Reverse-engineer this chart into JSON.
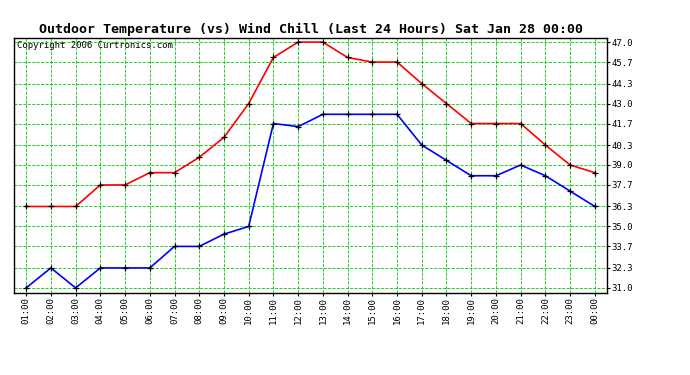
{
  "title": "Outdoor Temperature (vs) Wind Chill (Last 24 Hours) Sat Jan 28 00:00",
  "copyright": "Copyright 2006 Curtronics.com",
  "x_labels": [
    "01:00",
    "02:00",
    "03:00",
    "04:00",
    "05:00",
    "06:00",
    "07:00",
    "08:00",
    "09:00",
    "10:00",
    "11:00",
    "12:00",
    "13:00",
    "14:00",
    "15:00",
    "16:00",
    "17:00",
    "18:00",
    "19:00",
    "20:00",
    "21:00",
    "22:00",
    "23:00",
    "00:00"
  ],
  "temp_red": [
    36.3,
    36.3,
    36.3,
    37.7,
    37.7,
    38.5,
    38.5,
    39.5,
    40.8,
    43.0,
    46.0,
    47.0,
    47.0,
    46.0,
    45.7,
    45.7,
    44.3,
    43.0,
    41.7,
    41.7,
    41.7,
    40.3,
    39.0,
    38.5
  ],
  "temp_blue": [
    31.0,
    32.3,
    31.0,
    32.3,
    32.3,
    32.3,
    33.7,
    33.7,
    34.5,
    35.0,
    41.7,
    41.5,
    42.3,
    42.3,
    42.3,
    42.3,
    40.3,
    39.3,
    38.3,
    38.3,
    39.0,
    38.3,
    37.3,
    36.3
  ],
  "ylim_min": 31.0,
  "ylim_max": 47.0,
  "ytick_vals": [
    31.0,
    32.3,
    33.7,
    35.0,
    36.3,
    37.7,
    39.0,
    40.3,
    41.7,
    43.0,
    44.3,
    45.7,
    47.0
  ],
  "ytick_labels": [
    "31.0",
    "32.3",
    "33.7",
    "35.0",
    "36.3",
    "37.7",
    "39.0",
    "40.3",
    "41.7",
    "43.0",
    "44.3",
    "45.7",
    "47.0"
  ],
  "bg_color": "#ffffff",
  "grid_color": "#00cc00",
  "line_color_red": "#ff0000",
  "line_color_blue": "#0000ff",
  "marker_color": "#000000",
  "title_fontsize": 9.5,
  "copyright_fontsize": 6.5,
  "tick_fontsize": 6.5
}
